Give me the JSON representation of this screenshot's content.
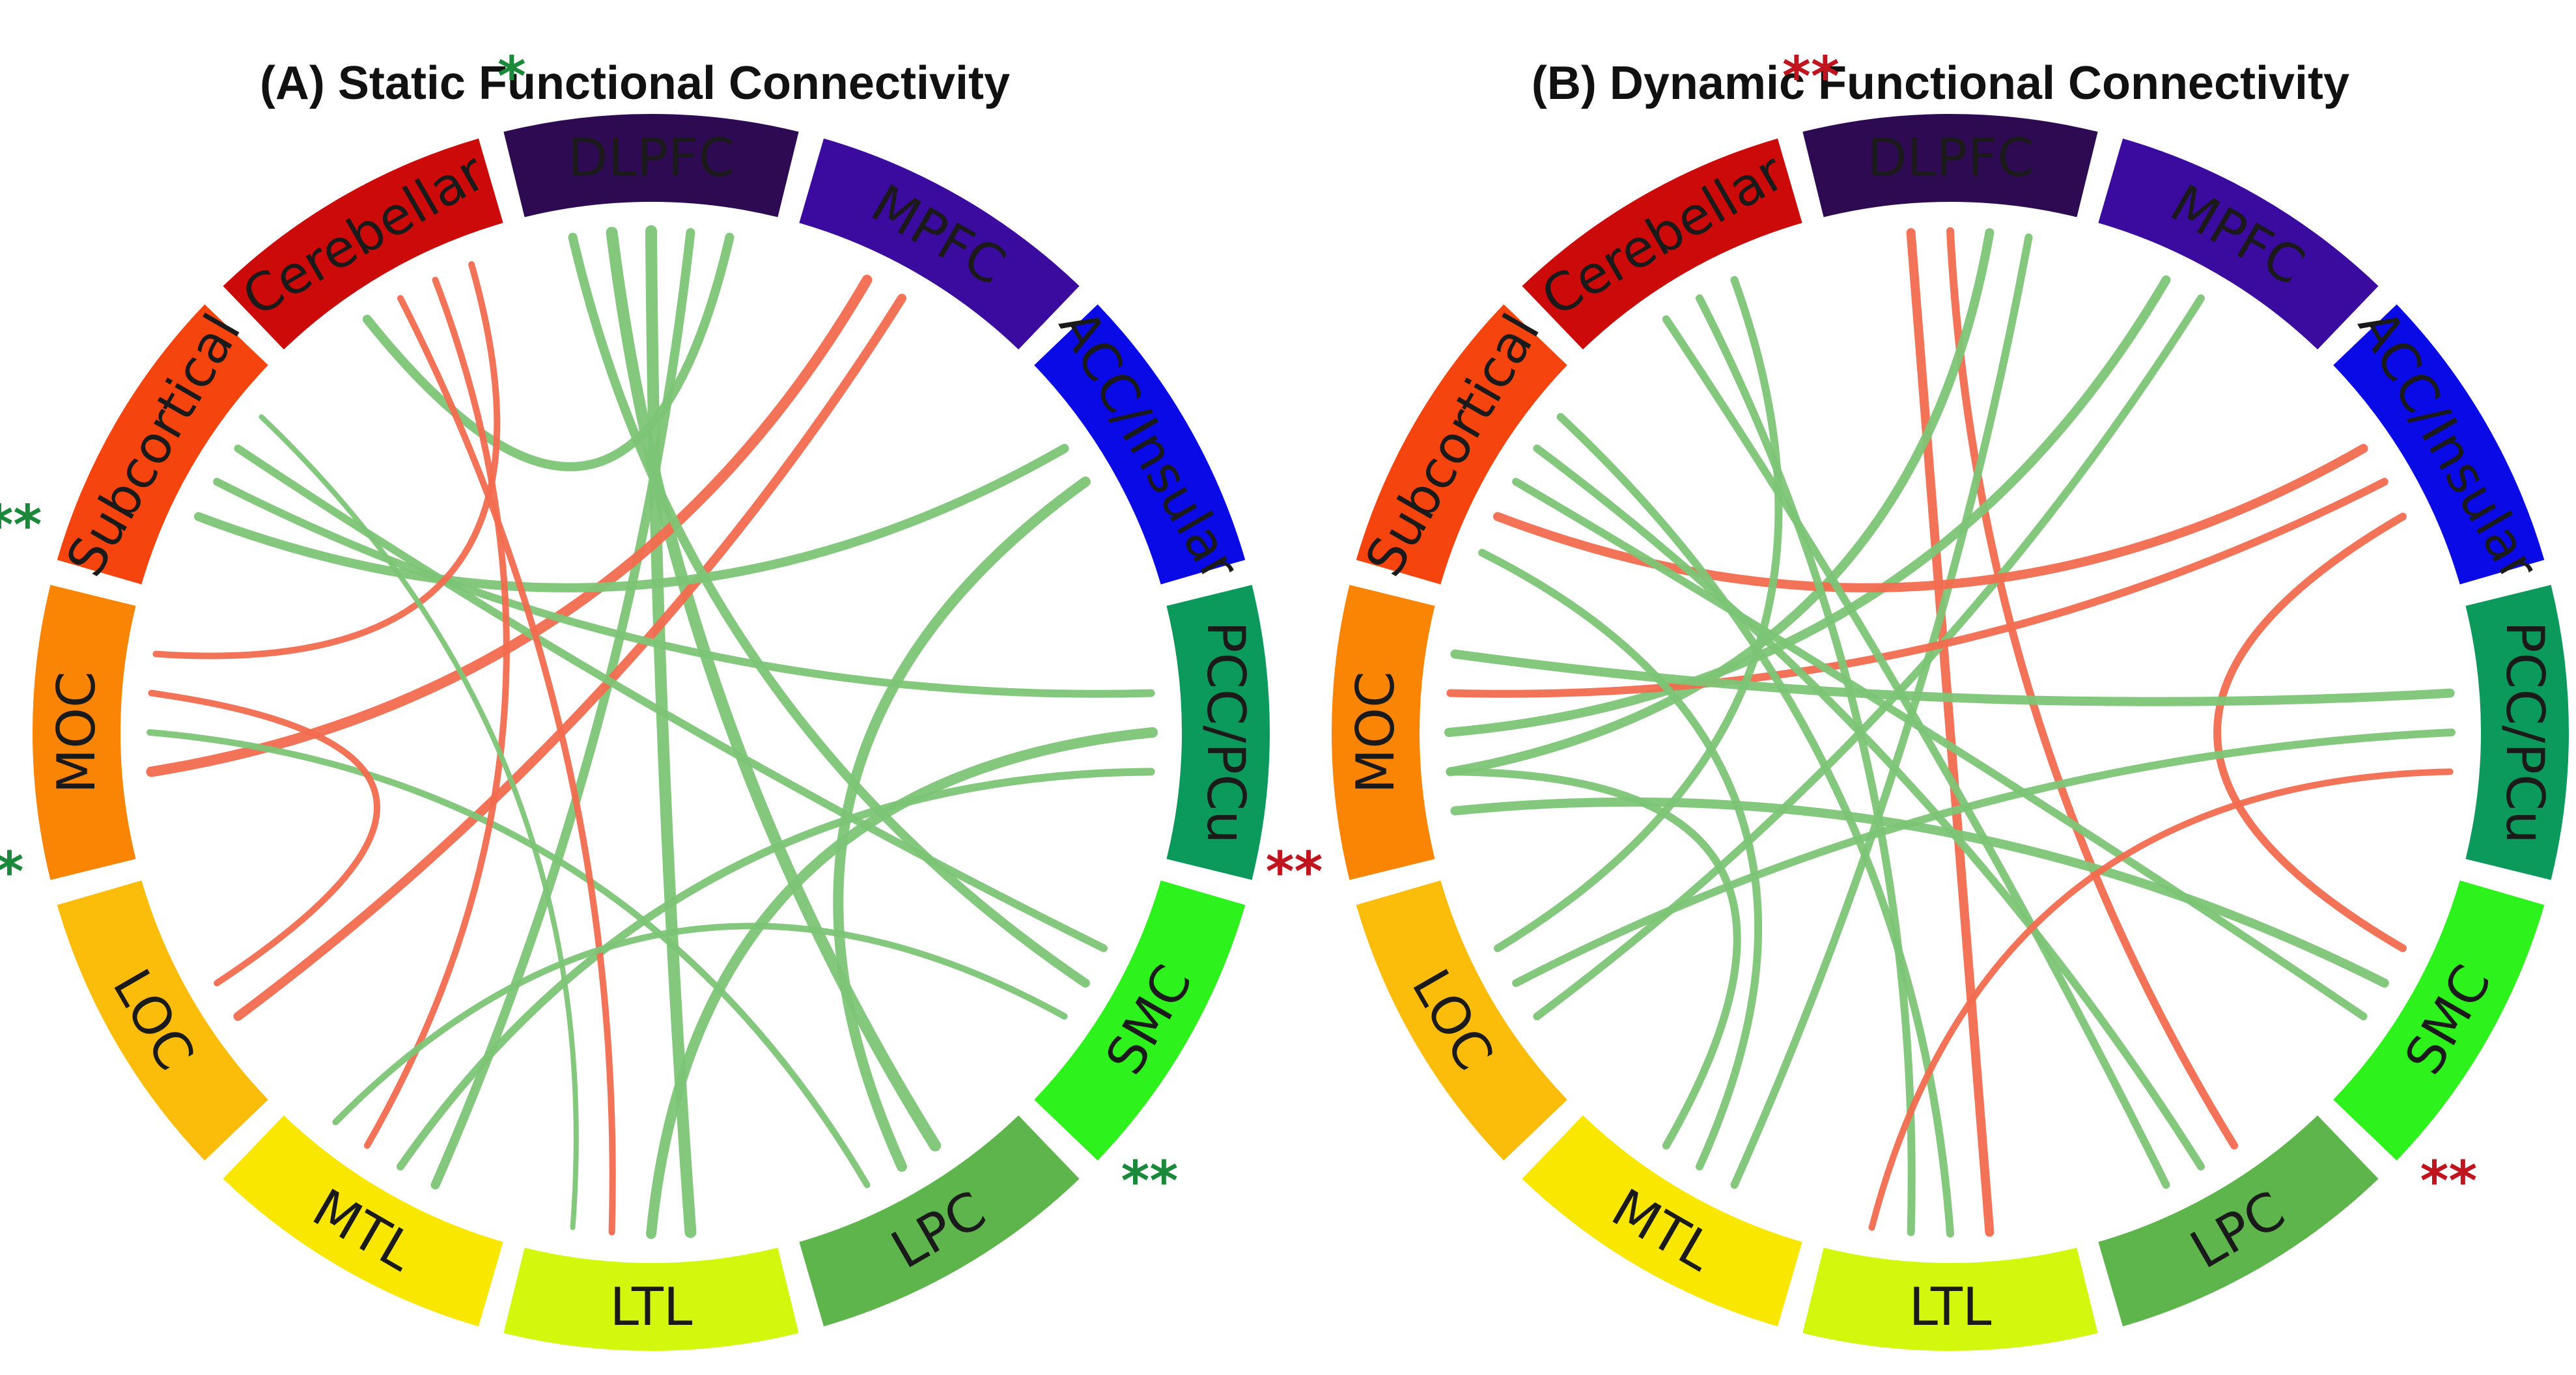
{
  "panels": [
    {
      "title": "(A) Static Functional Connectivity",
      "segments": [
        {
          "label": "DLPFC",
          "color": "#2d0a52",
          "stars": "*"
        },
        {
          "label": "MPFC",
          "color": "#3a0b9e",
          "stars": ""
        },
        {
          "label": "ACC/Insular",
          "color": "#0a0ae6",
          "stars": ""
        },
        {
          "label": "PCC/PCu",
          "color": "#0c9a5c",
          "stars": ""
        },
        {
          "label": "SMC",
          "color": "#2ef21b",
          "stars": "**"
        },
        {
          "label": "LPC",
          "color": "#5db54c",
          "stars": ""
        },
        {
          "label": "LTL",
          "color": "#d3f70d",
          "stars": ""
        },
        {
          "label": "MTL",
          "color": "#fae700",
          "stars": ""
        },
        {
          "label": "LOC",
          "color": "#fbbd0a",
          "stars": ""
        },
        {
          "label": "MOC",
          "color": "#fa8403",
          "stars": "**"
        },
        {
          "label": "Subcortical",
          "color": "#f5440e",
          "stars": "**"
        },
        {
          "label": "Cerebellar",
          "color": "#cc0a0a",
          "stars": ""
        }
      ],
      "star_color": "#1a8a3a",
      "edges": [
        {
          "a": 0,
          "b": 5,
          "sign": "pos",
          "w": 18
        },
        {
          "a": 0,
          "b": 6,
          "sign": "pos",
          "w": 18
        },
        {
          "a": 0,
          "b": 7,
          "sign": "pos",
          "w": 14
        },
        {
          "a": 0,
          "b": 11,
          "sign": "pos",
          "w": 14
        },
        {
          "a": 1,
          "b": 9,
          "sign": "neg",
          "w": 16
        },
        {
          "a": 1,
          "b": 8,
          "sign": "neg",
          "w": 14
        },
        {
          "a": 2,
          "b": 10,
          "sign": "pos",
          "w": 14
        },
        {
          "a": 2,
          "b": 5,
          "sign": "pos",
          "w": 16
        },
        {
          "a": 3,
          "b": 10,
          "sign": "pos",
          "w": 12
        },
        {
          "a": 3,
          "b": 6,
          "sign": "pos",
          "w": 16
        },
        {
          "a": 3,
          "b": 7,
          "sign": "pos",
          "w": 12
        },
        {
          "a": 4,
          "b": 10,
          "sign": "pos",
          "w": 12
        },
        {
          "a": 4,
          "b": 0,
          "sign": "pos",
          "w": 14
        },
        {
          "a": 5,
          "b": 9,
          "sign": "pos",
          "w": 10
        },
        {
          "a": 6,
          "b": 11,
          "sign": "neg",
          "w": 10
        },
        {
          "a": 7,
          "b": 11,
          "sign": "neg",
          "w": 10
        },
        {
          "a": 8,
          "b": 9,
          "sign": "neg",
          "w": 10
        },
        {
          "a": 9,
          "b": 11,
          "sign": "neg",
          "w": 10
        },
        {
          "a": 6,
          "b": 10,
          "sign": "pos",
          "w": 8
        },
        {
          "a": 7,
          "b": 4,
          "sign": "pos",
          "w": 10
        }
      ]
    },
    {
      "title": "(B) Dynamic Functional Connectivity",
      "segments": [
        {
          "label": "DLPFC",
          "color": "#2d0a52",
          "stars": "**"
        },
        {
          "label": "MPFC",
          "color": "#3a0b9e",
          "stars": ""
        },
        {
          "label": "ACC/Insular",
          "color": "#0a0ae6",
          "stars": ""
        },
        {
          "label": "PCC/PCu",
          "color": "#0c9a5c",
          "stars": ""
        },
        {
          "label": "SMC",
          "color": "#2ef21b",
          "stars": "**"
        },
        {
          "label": "LPC",
          "color": "#5db54c",
          "stars": ""
        },
        {
          "label": "LTL",
          "color": "#d3f70d",
          "stars": ""
        },
        {
          "label": "MTL",
          "color": "#fae700",
          "stars": ""
        },
        {
          "label": "LOC",
          "color": "#fbbd0a",
          "stars": ""
        },
        {
          "label": "MOC",
          "color": "#fa8403",
          "stars": "**"
        },
        {
          "label": "Subcortical",
          "color": "#f5440e",
          "stars": ""
        },
        {
          "label": "Cerebellar",
          "color": "#cc0a0a",
          "stars": ""
        }
      ],
      "star_color": "#c0141e",
      "edges": [
        {
          "a": 0,
          "b": 6,
          "sign": "neg",
          "w": 14
        },
        {
          "a": 0,
          "b": 5,
          "sign": "neg",
          "w": 12
        },
        {
          "a": 0,
          "b": 9,
          "sign": "pos",
          "w": 14
        },
        {
          "a": 0,
          "b": 7,
          "sign": "pos",
          "w": 12
        },
        {
          "a": 1,
          "b": 9,
          "sign": "pos",
          "w": 14
        },
        {
          "a": 1,
          "b": 8,
          "sign": "pos",
          "w": 12
        },
        {
          "a": 2,
          "b": 10,
          "sign": "neg",
          "w": 14
        },
        {
          "a": 2,
          "b": 9,
          "sign": "neg",
          "w": 12
        },
        {
          "a": 2,
          "b": 4,
          "sign": "neg",
          "w": 12
        },
        {
          "a": 3,
          "b": 9,
          "sign": "pos",
          "w": 14
        },
        {
          "a": 3,
          "b": 8,
          "sign": "pos",
          "w": 12
        },
        {
          "a": 4,
          "b": 9,
          "sign": "pos",
          "w": 14
        },
        {
          "a": 4,
          "b": 10,
          "sign": "pos",
          "w": 12
        },
        {
          "a": 5,
          "b": 10,
          "sign": "pos",
          "w": 12
        },
        {
          "a": 5,
          "b": 11,
          "sign": "pos",
          "w": 12
        },
        {
          "a": 6,
          "b": 10,
          "sign": "pos",
          "w": 12
        },
        {
          "a": 6,
          "b": 11,
          "sign": "pos",
          "w": 12
        },
        {
          "a": 7,
          "b": 10,
          "sign": "pos",
          "w": 12
        },
        {
          "a": 8,
          "b": 11,
          "sign": "pos",
          "w": 12
        },
        {
          "a": 9,
          "b": 7,
          "sign": "pos",
          "w": 12
        },
        {
          "a": 6,
          "b": 3,
          "sign": "neg",
          "w": 10
        }
      ]
    }
  ],
  "edge_colors": {
    "pos": "#7cc576",
    "neg": "#f26c4f"
  }
}
